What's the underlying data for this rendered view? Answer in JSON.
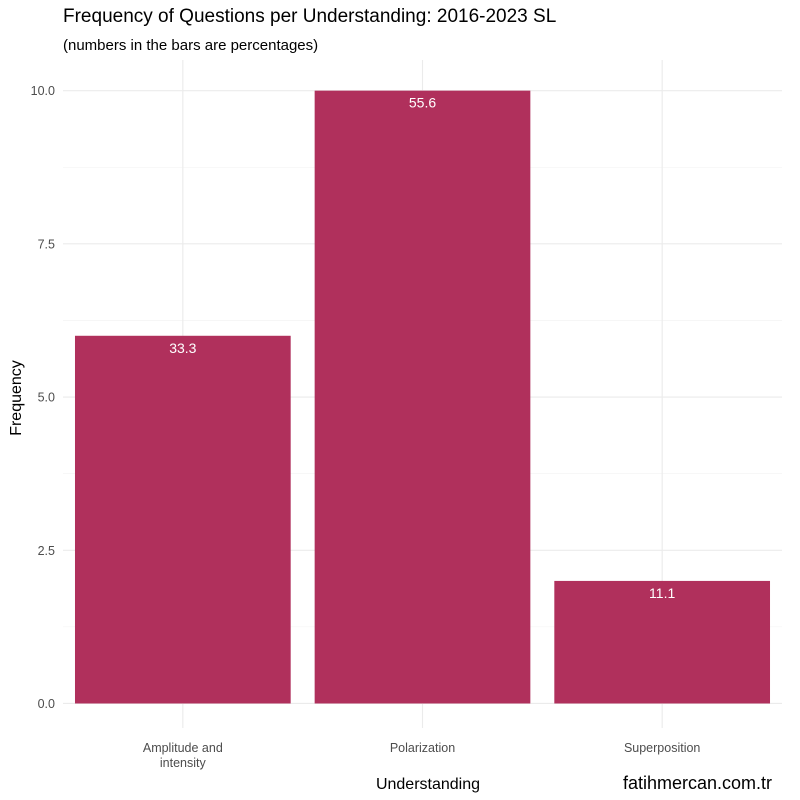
{
  "chart_data": {
    "type": "bar",
    "title": "Frequency of Questions per Understanding: 2016-2023 SL",
    "subtitle": "(numbers in the bars are percentages)",
    "xlabel": "Understanding",
    "ylabel": "Frequency",
    "categories": [
      [
        "Amplitude and",
        "intensity"
      ],
      [
        "Polarization"
      ],
      [
        "Superposition"
      ]
    ],
    "values": [
      6,
      10,
      2
    ],
    "bar_labels": [
      "33.3",
      "55.6",
      "11.1"
    ],
    "ylim": [
      -0.4,
      10.5
    ],
    "yticks": [
      0,
      2.5,
      5,
      7.5,
      10
    ],
    "ytick_labels": [
      "0.0",
      "2.5",
      "5.0",
      "7.5",
      "10.0"
    ],
    "grid": true,
    "bar_color": "#B0305C",
    "caption": "fatihmercan.com.tr"
  }
}
